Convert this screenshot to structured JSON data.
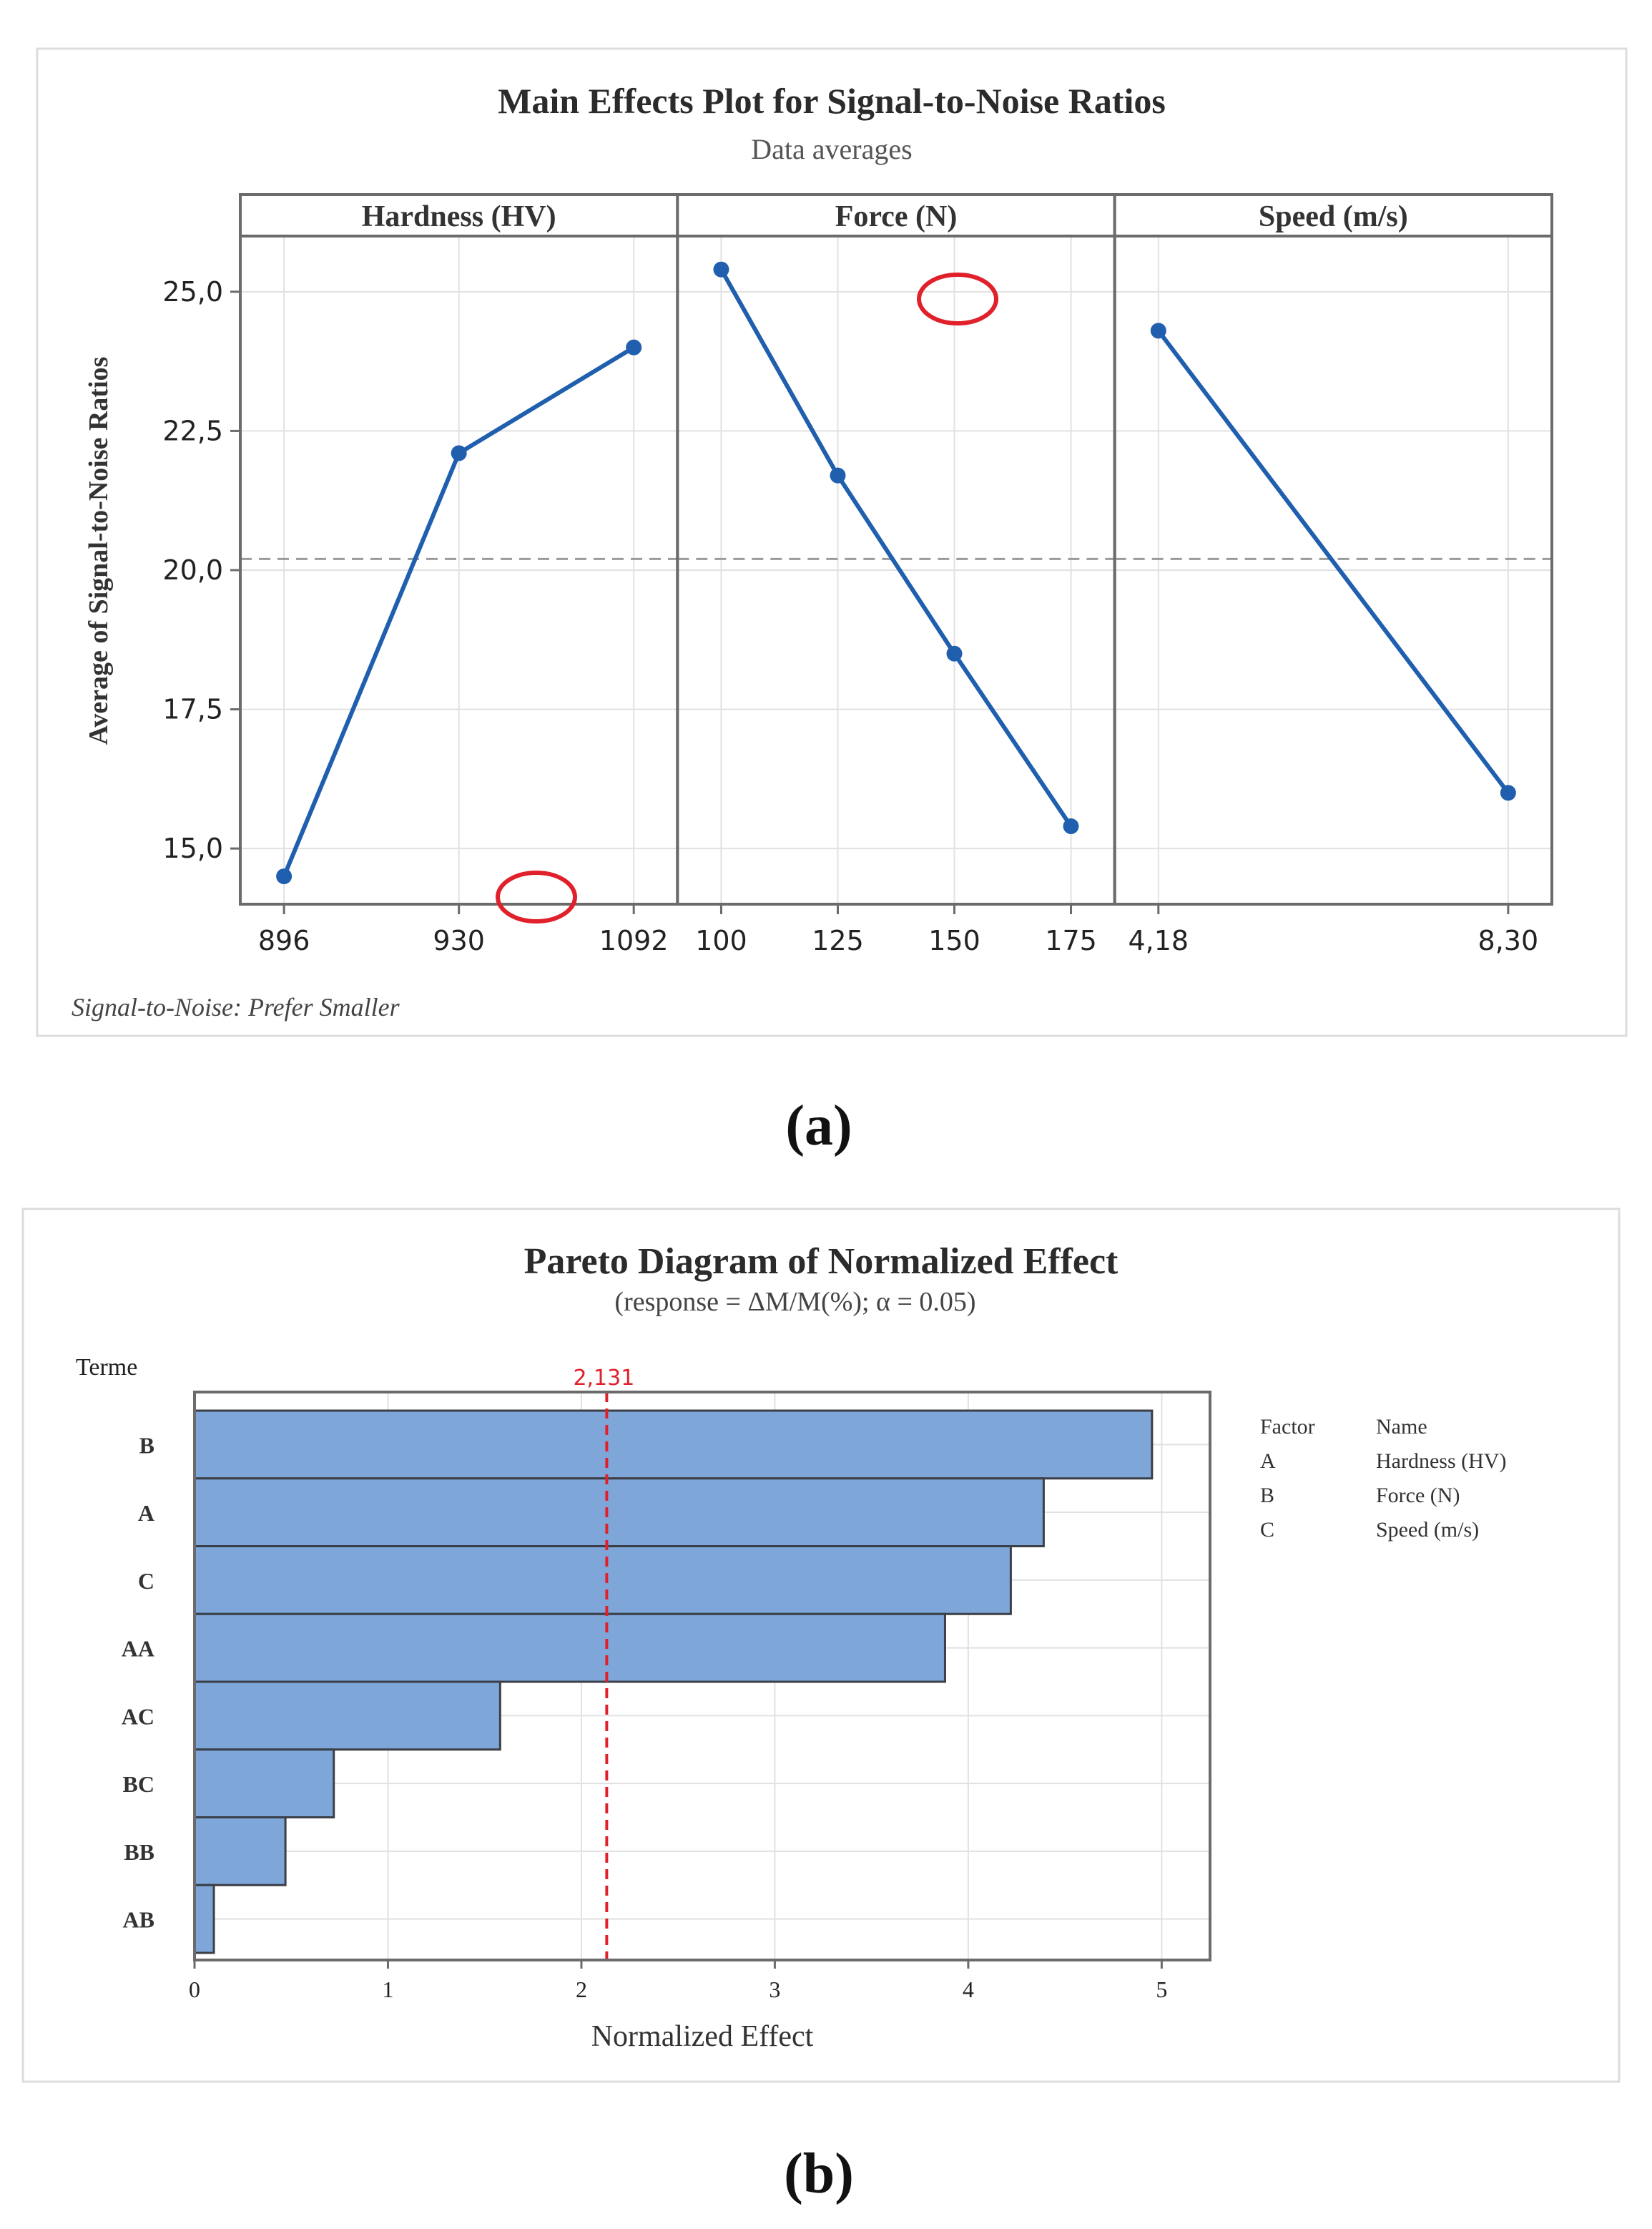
{
  "colors": {
    "line": "#1f5fae",
    "bar_fill": "#7ea6d9",
    "bar_stroke": "#3b3f47",
    "ref_red": "#e0212b",
    "grid": "#e1e1e1",
    "frame": "#6b6b6b",
    "mean_line": "#9a9a9a"
  },
  "chart_data": [
    {
      "type": "line",
      "title": "Main Effects Plot for Signal-to-Noise Ratios",
      "subtitle": "Data averages",
      "ylabel": "Average of Signal-to-Noise Ratios",
      "ylim": [
        14.0,
        26.0
      ],
      "yticks": [
        15.0,
        17.5,
        20.0,
        22.5,
        25.0
      ],
      "ytick_labels": [
        "15,0",
        "17,5",
        "20,0",
        "22,5",
        "25,0"
      ],
      "grid": true,
      "mean": 20.2,
      "panels": [
        {
          "name": "Hardness (HV)",
          "categories": [
            "896",
            "930",
            "1092"
          ],
          "values": [
            14.5,
            22.1,
            24.0
          ]
        },
        {
          "name": "Force (N)",
          "categories": [
            "100",
            "125",
            "150",
            "175"
          ],
          "values": [
            25.4,
            21.7,
            18.5,
            15.4
          ]
        },
        {
          "name": "Speed (m/s)",
          "categories": [
            "4,18",
            "8,30"
          ],
          "values": [
            24.3,
            16.0
          ]
        }
      ],
      "footnote": "Signal-to-Noise: Prefer Smaller",
      "panel_label": "(a)"
    },
    {
      "type": "bar",
      "orientation": "horizontal",
      "title": "Pareto Diagram of Normalized Effect",
      "subtitle": "(response = ΔM/M(%); α = 0.05)",
      "xlabel": "Normalized Effect",
      "ylabel": "Terme",
      "xlim": [
        0,
        5.25
      ],
      "xticks": [
        0,
        1,
        2,
        3,
        4,
        5
      ],
      "grid": true,
      "categories": [
        "B",
        "A",
        "C",
        "AA",
        "AC",
        "BC",
        "BB",
        "AB"
      ],
      "values": [
        4.95,
        4.39,
        4.22,
        3.88,
        1.58,
        0.72,
        0.47,
        0.1
      ],
      "reference_value": 2.131,
      "reference_label": "2,131",
      "legend": {
        "headers": [
          "Factor",
          "Name"
        ],
        "rows": [
          [
            "A",
            "Hardness (HV)"
          ],
          [
            "B",
            "Force (N)"
          ],
          [
            "C",
            "Speed (m/s)"
          ]
        ]
      },
      "panel_label": "(b)"
    }
  ]
}
